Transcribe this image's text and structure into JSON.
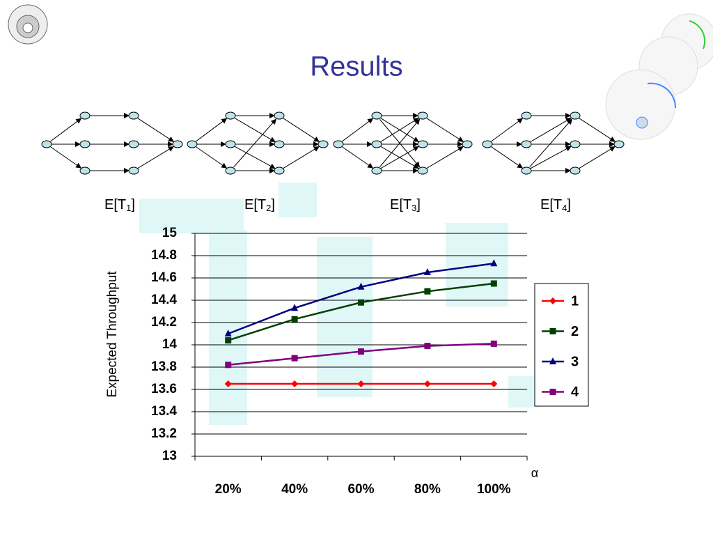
{
  "title": "Results",
  "diagram_labels": [
    {
      "base": "E[T",
      "sub": "1",
      "close": "]"
    },
    {
      "base": "E[T",
      "sub": "2",
      "close": "]"
    },
    {
      "base": "E[T",
      "sub": "3",
      "close": "]"
    },
    {
      "base": "E[T",
      "sub": "4",
      "close": "]"
    }
  ],
  "chart_data": {
    "type": "line",
    "ylabel": "Expected Throughput",
    "xlabel": "α",
    "categories": [
      "20%",
      "40%",
      "60%",
      "80%",
      "100%"
    ],
    "series": [
      {
        "name": "1",
        "color": "#ff0000",
        "marker": "diamond",
        "values": [
          13.65,
          13.65,
          13.65,
          13.65,
          13.65
        ]
      },
      {
        "name": "2",
        "color": "#004000",
        "marker": "square",
        "values": [
          14.04,
          14.23,
          14.38,
          14.48,
          14.55
        ]
      },
      {
        "name": "3",
        "color": "#000080",
        "marker": "triangle",
        "values": [
          14.1,
          14.33,
          14.52,
          14.65,
          14.73
        ]
      },
      {
        "name": "4",
        "color": "#800080",
        "marker": "square",
        "values": [
          13.82,
          13.88,
          13.94,
          13.99,
          14.01
        ]
      }
    ],
    "ylim": [
      13,
      15
    ],
    "yticks": [
      13,
      13.2,
      13.4,
      13.6,
      13.8,
      14,
      14.2,
      14.4,
      14.6,
      14.8,
      15
    ],
    "grid": true,
    "legend": "right"
  }
}
